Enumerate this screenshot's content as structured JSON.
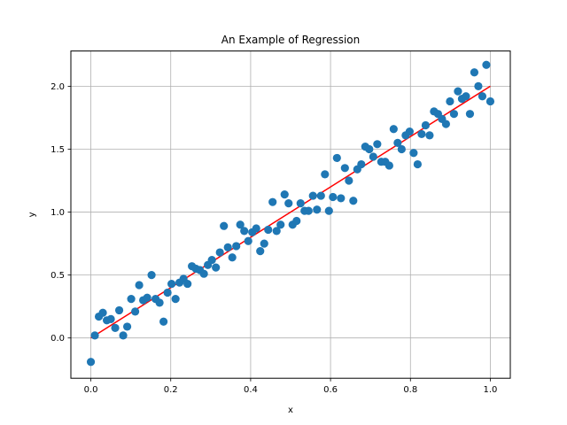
{
  "chart_data": {
    "type": "scatter",
    "title": "An Example of Regression",
    "xlabel": "x",
    "ylabel": "y",
    "xlim": [
      -0.05,
      1.05
    ],
    "ylim": [
      -0.32,
      2.28
    ],
    "xticks": [
      0.0,
      0.2,
      0.4,
      0.6,
      0.8,
      1.0
    ],
    "xtick_labels": [
      "0.0",
      "0.2",
      "0.4",
      "0.6",
      "0.8",
      "1.0"
    ],
    "yticks": [
      0.0,
      0.5,
      1.0,
      1.5,
      2.0
    ],
    "ytick_labels": [
      "0.0",
      "0.5",
      "1.0",
      "1.5",
      "2.0"
    ],
    "grid": true,
    "colors": {
      "points": "#1f77b4",
      "line": "#ff0000",
      "grid": "#b0b0b0"
    },
    "series": [
      {
        "kind": "scatter",
        "x": [
          0.0,
          0.01,
          0.02,
          0.03,
          0.04,
          0.05,
          0.061,
          0.071,
          0.081,
          0.091,
          0.101,
          0.111,
          0.121,
          0.131,
          0.141,
          0.152,
          0.162,
          0.172,
          0.182,
          0.192,
          0.202,
          0.212,
          0.222,
          0.232,
          0.242,
          0.253,
          0.263,
          0.273,
          0.283,
          0.293,
          0.303,
          0.313,
          0.323,
          0.333,
          0.343,
          0.354,
          0.364,
          0.374,
          0.384,
          0.394,
          0.404,
          0.414,
          0.424,
          0.434,
          0.444,
          0.455,
          0.465,
          0.475,
          0.485,
          0.495,
          0.505,
          0.515,
          0.525,
          0.535,
          0.545,
          0.556,
          0.566,
          0.576,
          0.586,
          0.596,
          0.606,
          0.616,
          0.626,
          0.636,
          0.646,
          0.657,
          0.667,
          0.677,
          0.687,
          0.697,
          0.707,
          0.717,
          0.727,
          0.737,
          0.747,
          0.758,
          0.768,
          0.778,
          0.788,
          0.798,
          0.808,
          0.818,
          0.828,
          0.838,
          0.848,
          0.859,
          0.869,
          0.879,
          0.889,
          0.899,
          0.909,
          0.919,
          0.929,
          0.939,
          0.949,
          0.96,
          0.97,
          0.98,
          0.99,
          1.0
        ],
        "y": [
          -0.19,
          0.02,
          0.17,
          0.2,
          0.14,
          0.15,
          0.08,
          0.22,
          0.02,
          0.09,
          0.31,
          0.21,
          0.42,
          0.3,
          0.32,
          0.5,
          0.31,
          0.28,
          0.13,
          0.36,
          0.43,
          0.31,
          0.44,
          0.47,
          0.43,
          0.57,
          0.55,
          0.54,
          0.51,
          0.58,
          0.62,
          0.56,
          0.68,
          0.89,
          0.72,
          0.64,
          0.73,
          0.9,
          0.85,
          0.77,
          0.84,
          0.87,
          0.69,
          0.75,
          0.86,
          1.08,
          0.85,
          0.9,
          1.14,
          1.07,
          0.9,
          0.93,
          1.07,
          1.01,
          1.01,
          1.13,
          1.02,
          1.13,
          1.3,
          1.01,
          1.12,
          1.43,
          1.11,
          1.35,
          1.25,
          1.09,
          1.34,
          1.38,
          1.52,
          1.5,
          1.44,
          1.54,
          1.4,
          1.4,
          1.37,
          1.66,
          1.55,
          1.5,
          1.61,
          1.64,
          1.47,
          1.38,
          1.62,
          1.69,
          1.61,
          1.8,
          1.78,
          1.74,
          1.7,
          1.88,
          1.78,
          1.96,
          1.9,
          1.92,
          1.78,
          2.11,
          2.0,
          1.92,
          2.17,
          1.88
        ]
      },
      {
        "kind": "line",
        "x": [
          0.0,
          1.0
        ],
        "y": [
          0.0,
          2.0
        ]
      }
    ]
  }
}
